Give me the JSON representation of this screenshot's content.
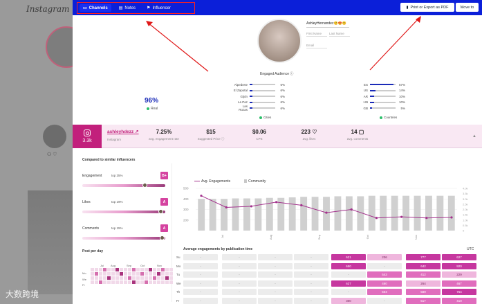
{
  "background": {
    "logo": "Instagram",
    "icons": "⚇ ♡",
    "watermark": "大数跨境"
  },
  "topbar": {
    "tabs": [
      {
        "label": "Channels",
        "icon": "monitor-icon",
        "active": true
      },
      {
        "label": "Notes",
        "icon": "notes-icon",
        "active": false
      },
      {
        "label": "Influencer",
        "icon": "flag-icon",
        "active": false
      }
    ],
    "print_label": "Print or Export as PDF",
    "move_label": "Move to"
  },
  "profile": {
    "username": "AshleyHernandez😊😍😊",
    "first_name_placeholder": "First Name",
    "last_name_placeholder": "Last Name",
    "email_placeholder": "Email"
  },
  "audience": {
    "title": "Engaged Audience",
    "real_pct": "96%",
    "real_label": "Real",
    "cities_label": "Cities",
    "countries_label": "Countries",
    "cities": [
      {
        "name": "Alpedrete",
        "value": "6%",
        "pct": 6
      },
      {
        "name": "El Zapotal",
        "value": "6%",
        "pct": 6
      },
      {
        "name": "Gijón",
        "value": "6%",
        "pct": 6
      },
      {
        "name": "La Paz",
        "value": "6%",
        "pct": 6
      },
      {
        "name": "Las Rozas",
        "value": "6%",
        "pct": 6
      }
    ],
    "countries": [
      {
        "name": "ES",
        "value": "57%",
        "pct": 57
      },
      {
        "name": "US",
        "value": "14%",
        "pct": 14
      },
      {
        "name": "AR",
        "value": "10%",
        "pct": 10
      },
      {
        "name": "HN",
        "value": "10%",
        "pct": 10
      },
      {
        "name": "GB",
        "value": "5%",
        "pct": 5
      }
    ]
  },
  "stats": {
    "followers": "3.3k",
    "handle": "ashleyhdezz",
    "platform": "Instagram",
    "items": [
      {
        "value": "7.25%",
        "label": "avg. engagement rate"
      },
      {
        "value": "$15",
        "label": "Suggested Price"
      },
      {
        "value": "$0.06",
        "label": "CPE"
      },
      {
        "value": "223",
        "label": "avg. likes"
      },
      {
        "value": "14",
        "label": "avg. comments"
      }
    ]
  },
  "compare": {
    "title": "Compared to similar influencers",
    "metrics": [
      {
        "name": "Engagement",
        "top": "top 35%",
        "grade": "B+",
        "level": 0.76
      },
      {
        "name": "Likes",
        "top": "top 19%",
        "grade": "A",
        "level": 0.95
      },
      {
        "name": "Comments",
        "top": "top 15%",
        "grade": "A",
        "level": 0.97
      }
    ]
  },
  "posts_per_day": {
    "title": "Post per day",
    "months": [
      "Jul",
      "Aug",
      "Sep",
      "Oct",
      "Nov"
    ],
    "days": [
      "Mo",
      "We",
      "Fr"
    ]
  },
  "chart_data": {
    "type": "line",
    "legend": [
      "Avg. Engagements",
      "Community"
    ],
    "x_ticks": [
      "Jul",
      "Aug",
      "Sep",
      "Oct",
      "Nov"
    ],
    "y_ticks_left": [
      "500",
      "400",
      "300",
      "200"
    ],
    "y_ticks_right": [
      "4.0k",
      "3.5k",
      "3.0k",
      "2.5k",
      "2.0k",
      "1.5k",
      "1.0k",
      "0.5k",
      "0"
    ],
    "ylim_left": [
      100,
      500
    ],
    "ylim_right": [
      0,
      4000
    ],
    "series": [
      {
        "name": "Avg. Engagements",
        "values": [
          430,
          320,
          330,
          370,
          340,
          270,
          300,
          220,
          230,
          220,
          225
        ]
      },
      {
        "name": "Community",
        "values": [
          3000,
          3000,
          3000,
          3050,
          3050,
          3050,
          3100,
          3100,
          3150,
          3200,
          3200,
          3200,
          3250,
          3250,
          3250,
          3300,
          3300,
          3300,
          3300,
          3300,
          3300,
          3300,
          3300
        ]
      }
    ],
    "colors": {
      "line": "#a3318c",
      "bars": "#d0d0d0"
    }
  },
  "engagement_table": {
    "title": "Average engagements by publication time",
    "tz": "UTC",
    "days": [
      "Su",
      "Mo",
      "Tu",
      "We",
      "Th",
      "Fr"
    ],
    "rows": [
      [
        "-",
        "-",
        "-",
        "-",
        "621",
        "206",
        "777",
        "627"
      ],
      [
        "-",
        "-",
        "-",
        "-",
        "650",
        "-",
        "642",
        "920"
      ],
      [
        "-",
        "-",
        "-",
        "-",
        "-",
        "543",
        "412",
        "229"
      ],
      [
        "-",
        "-",
        "-",
        "-",
        "627",
        "460",
        "264",
        "467"
      ],
      [
        "-",
        "-",
        "-",
        "-",
        "-",
        "504",
        "589",
        "754"
      ],
      [
        "-",
        "-",
        "-",
        "-",
        "300",
        "-",
        "517",
        "410"
      ]
    ]
  }
}
